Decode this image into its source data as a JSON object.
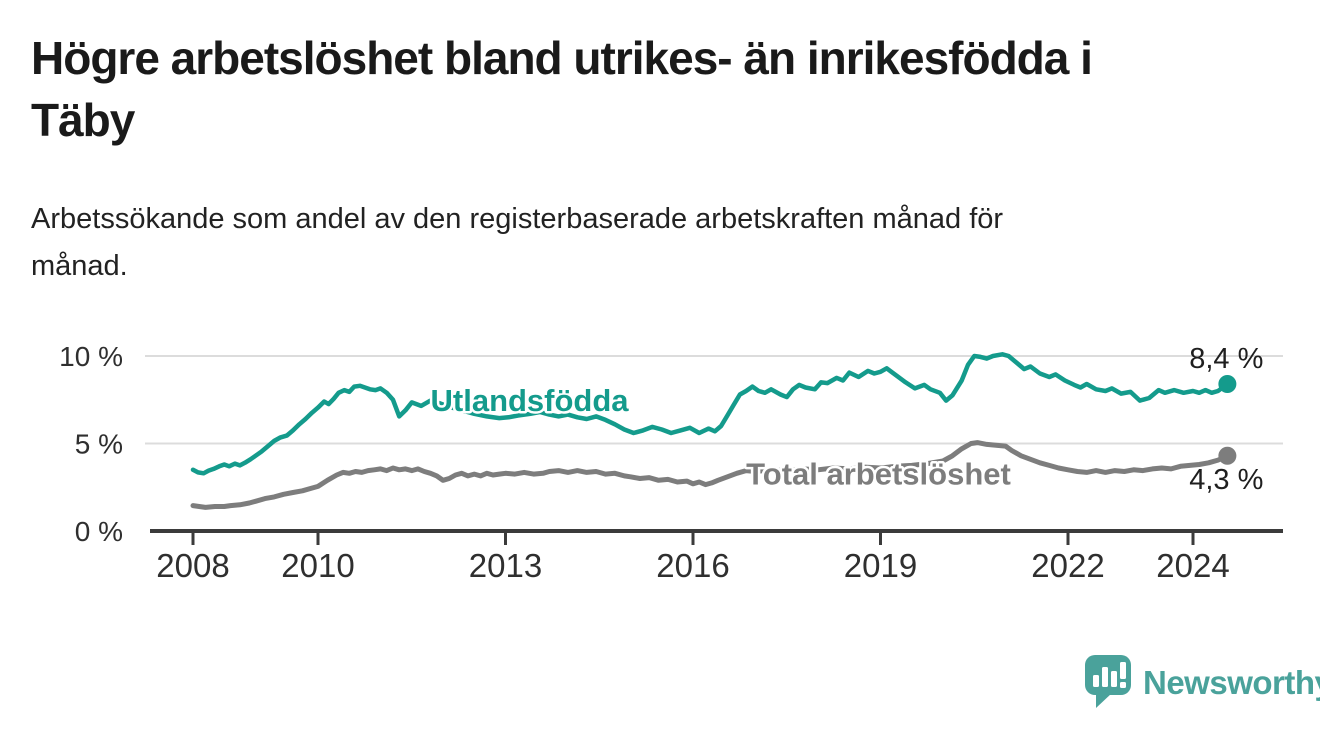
{
  "title": {
    "line1": "Högre arbetslöshet bland utrikes- än inrikesfödda i",
    "line2": "Täby"
  },
  "subtitle": {
    "line1": "Arbetssökande som andel av den registerbaserade arbetskraften månad för",
    "line2": "månad."
  },
  "branding": {
    "logo_text": "Newsworthy",
    "logo_icon": "newsworthy-speech-bubble-bar-chart-icon"
  },
  "colors": {
    "foreign_born_line": "#149b8c",
    "total_line": "#7d7d7d",
    "axis": "#3b3b3b",
    "grid": "#dcdcdc",
    "text": "#1f1f1f",
    "logo": "#4aa29b",
    "background": "#ffffff"
  },
  "chart_data": {
    "type": "line",
    "title": "Högre arbetslöshet bland utrikes- än inrikesfödda i Täby",
    "subtitle": "Arbetssökande som andel av den registerbaserade arbetskraften månad för månad.",
    "xlabel": "",
    "ylabel": "",
    "grid": "horizontal",
    "legend_position": "inline-labels",
    "xlim": [
      2007.3,
      2025.4
    ],
    "ylim": [
      0,
      10.8
    ],
    "x_ticks": [
      2008,
      2010,
      2013,
      2016,
      2019,
      2022,
      2024
    ],
    "y_ticks": [
      {
        "value": 0,
        "label": "0 %"
      },
      {
        "value": 5,
        "label": "5 %"
      },
      {
        "value": 10,
        "label": "10 %"
      }
    ],
    "series": [
      {
        "id": "utlandsfodda",
        "name": "Utlandsfödda",
        "color": "#149b8c",
        "width": 4.5,
        "end_label": "8,4 %",
        "end_value": 8.4,
        "value_label_position": "above",
        "label_anchor": {
          "x": 2011.8,
          "y": 7.5
        },
        "points": [
          [
            2008.0,
            3.5
          ],
          [
            2008.08,
            3.35
          ],
          [
            2008.17,
            3.3
          ],
          [
            2008.25,
            3.45
          ],
          [
            2008.33,
            3.55
          ],
          [
            2008.42,
            3.7
          ],
          [
            2008.5,
            3.8
          ],
          [
            2008.58,
            3.7
          ],
          [
            2008.67,
            3.85
          ],
          [
            2008.75,
            3.75
          ],
          [
            2008.83,
            3.9
          ],
          [
            2008.92,
            4.1
          ],
          [
            2009.0,
            4.3
          ],
          [
            2009.1,
            4.55
          ],
          [
            2009.2,
            4.85
          ],
          [
            2009.3,
            5.15
          ],
          [
            2009.4,
            5.35
          ],
          [
            2009.5,
            5.45
          ],
          [
            2009.6,
            5.75
          ],
          [
            2009.7,
            6.1
          ],
          [
            2009.8,
            6.4
          ],
          [
            2009.9,
            6.75
          ],
          [
            2010.0,
            7.05
          ],
          [
            2010.1,
            7.4
          ],
          [
            2010.17,
            7.25
          ],
          [
            2010.25,
            7.55
          ],
          [
            2010.33,
            7.9
          ],
          [
            2010.42,
            8.05
          ],
          [
            2010.5,
            7.95
          ],
          [
            2010.58,
            8.25
          ],
          [
            2010.67,
            8.3
          ],
          [
            2010.75,
            8.2
          ],
          [
            2010.83,
            8.1
          ],
          [
            2010.92,
            8.05
          ],
          [
            2011.0,
            8.15
          ],
          [
            2011.1,
            7.9
          ],
          [
            2011.2,
            7.5
          ],
          [
            2011.3,
            6.55
          ],
          [
            2011.4,
            6.9
          ],
          [
            2011.5,
            7.35
          ],
          [
            2011.65,
            7.15
          ],
          [
            2011.8,
            7.45
          ],
          [
            2011.95,
            7.3
          ],
          [
            2012.1,
            7.1
          ],
          [
            2012.3,
            6.9
          ],
          [
            2012.5,
            6.7
          ],
          [
            2012.7,
            6.55
          ],
          [
            2012.9,
            6.45
          ],
          [
            2013.05,
            6.5
          ],
          [
            2013.2,
            6.6
          ],
          [
            2013.4,
            6.7
          ],
          [
            2013.55,
            6.8
          ],
          [
            2013.7,
            6.65
          ],
          [
            2013.85,
            6.55
          ],
          [
            2014.0,
            6.65
          ],
          [
            2014.15,
            6.5
          ],
          [
            2014.3,
            6.4
          ],
          [
            2014.45,
            6.55
          ],
          [
            2014.6,
            6.35
          ],
          [
            2014.75,
            6.1
          ],
          [
            2014.9,
            5.8
          ],
          [
            2015.05,
            5.6
          ],
          [
            2015.2,
            5.75
          ],
          [
            2015.35,
            5.95
          ],
          [
            2015.5,
            5.8
          ],
          [
            2015.65,
            5.6
          ],
          [
            2015.8,
            5.75
          ],
          [
            2015.95,
            5.9
          ],
          [
            2016.1,
            5.6
          ],
          [
            2016.25,
            5.85
          ],
          [
            2016.35,
            5.7
          ],
          [
            2016.45,
            6.0
          ],
          [
            2016.55,
            6.6
          ],
          [
            2016.65,
            7.2
          ],
          [
            2016.75,
            7.8
          ],
          [
            2016.85,
            8.0
          ],
          [
            2016.95,
            8.25
          ],
          [
            2017.05,
            8.0
          ],
          [
            2017.15,
            7.9
          ],
          [
            2017.25,
            8.1
          ],
          [
            2017.4,
            7.8
          ],
          [
            2017.5,
            7.65
          ],
          [
            2017.6,
            8.1
          ],
          [
            2017.7,
            8.35
          ],
          [
            2017.8,
            8.2
          ],
          [
            2017.95,
            8.1
          ],
          [
            2018.05,
            8.5
          ],
          [
            2018.15,
            8.45
          ],
          [
            2018.3,
            8.75
          ],
          [
            2018.4,
            8.6
          ],
          [
            2018.5,
            9.05
          ],
          [
            2018.65,
            8.8
          ],
          [
            2018.8,
            9.15
          ],
          [
            2018.9,
            9.0
          ],
          [
            2019.0,
            9.1
          ],
          [
            2019.1,
            9.3
          ],
          [
            2019.25,
            8.9
          ],
          [
            2019.4,
            8.5
          ],
          [
            2019.55,
            8.15
          ],
          [
            2019.7,
            8.35
          ],
          [
            2019.8,
            8.1
          ],
          [
            2019.95,
            7.9
          ],
          [
            2020.05,
            7.45
          ],
          [
            2020.15,
            7.75
          ],
          [
            2020.3,
            8.6
          ],
          [
            2020.4,
            9.5
          ],
          [
            2020.5,
            10.0
          ],
          [
            2020.6,
            9.95
          ],
          [
            2020.7,
            9.85
          ],
          [
            2020.8,
            10.0
          ],
          [
            2020.95,
            10.1
          ],
          [
            2021.05,
            10.0
          ],
          [
            2021.2,
            9.55
          ],
          [
            2021.3,
            9.25
          ],
          [
            2021.4,
            9.4
          ],
          [
            2021.55,
            9.0
          ],
          [
            2021.7,
            8.8
          ],
          [
            2021.8,
            8.95
          ],
          [
            2021.95,
            8.6
          ],
          [
            2022.1,
            8.35
          ],
          [
            2022.2,
            8.2
          ],
          [
            2022.3,
            8.4
          ],
          [
            2022.45,
            8.1
          ],
          [
            2022.6,
            8.0
          ],
          [
            2022.7,
            8.15
          ],
          [
            2022.85,
            7.85
          ],
          [
            2023.0,
            7.95
          ],
          [
            2023.15,
            7.45
          ],
          [
            2023.3,
            7.6
          ],
          [
            2023.45,
            8.05
          ],
          [
            2023.55,
            7.9
          ],
          [
            2023.7,
            8.05
          ],
          [
            2023.85,
            7.9
          ],
          [
            2024.0,
            8.0
          ],
          [
            2024.1,
            7.9
          ],
          [
            2024.2,
            8.05
          ],
          [
            2024.3,
            7.9
          ],
          [
            2024.4,
            8.0
          ],
          [
            2024.55,
            8.4
          ]
        ]
      },
      {
        "id": "total",
        "name": "Total arbetslöshet",
        "color": "#7d7d7d",
        "width": 5,
        "end_label": "4,3 %",
        "end_value": 4.3,
        "value_label_position": "below",
        "label_anchor": {
          "x": 2016.85,
          "y": 3.3
        },
        "points": [
          [
            2008.0,
            1.45
          ],
          [
            2008.1,
            1.4
          ],
          [
            2008.2,
            1.35
          ],
          [
            2008.35,
            1.4
          ],
          [
            2008.5,
            1.4
          ],
          [
            2008.6,
            1.45
          ],
          [
            2008.75,
            1.5
          ],
          [
            2008.9,
            1.6
          ],
          [
            2009.0,
            1.7
          ],
          [
            2009.15,
            1.85
          ],
          [
            2009.3,
            1.95
          ],
          [
            2009.45,
            2.1
          ],
          [
            2009.6,
            2.2
          ],
          [
            2009.75,
            2.3
          ],
          [
            2009.9,
            2.45
          ],
          [
            2010.0,
            2.55
          ],
          [
            2010.15,
            2.9
          ],
          [
            2010.3,
            3.2
          ],
          [
            2010.4,
            3.35
          ],
          [
            2010.5,
            3.3
          ],
          [
            2010.6,
            3.4
          ],
          [
            2010.7,
            3.35
          ],
          [
            2010.8,
            3.45
          ],
          [
            2010.9,
            3.5
          ],
          [
            2011.0,
            3.55
          ],
          [
            2011.1,
            3.45
          ],
          [
            2011.2,
            3.6
          ],
          [
            2011.3,
            3.5
          ],
          [
            2011.4,
            3.55
          ],
          [
            2011.5,
            3.45
          ],
          [
            2011.6,
            3.55
          ],
          [
            2011.7,
            3.4
          ],
          [
            2011.8,
            3.3
          ],
          [
            2011.9,
            3.15
          ],
          [
            2012.0,
            2.9
          ],
          [
            2012.1,
            3.0
          ],
          [
            2012.2,
            3.2
          ],
          [
            2012.3,
            3.3
          ],
          [
            2012.4,
            3.15
          ],
          [
            2012.5,
            3.25
          ],
          [
            2012.6,
            3.15
          ],
          [
            2012.7,
            3.3
          ],
          [
            2012.8,
            3.2
          ],
          [
            2012.9,
            3.25
          ],
          [
            2013.0,
            3.3
          ],
          [
            2013.15,
            3.25
          ],
          [
            2013.3,
            3.35
          ],
          [
            2013.45,
            3.25
          ],
          [
            2013.6,
            3.3
          ],
          [
            2013.7,
            3.4
          ],
          [
            2013.85,
            3.45
          ],
          [
            2014.0,
            3.35
          ],
          [
            2014.15,
            3.45
          ],
          [
            2014.3,
            3.35
          ],
          [
            2014.45,
            3.4
          ],
          [
            2014.6,
            3.25
          ],
          [
            2014.75,
            3.3
          ],
          [
            2014.9,
            3.15
          ],
          [
            2015.0,
            3.1
          ],
          [
            2015.15,
            3.0
          ],
          [
            2015.3,
            3.05
          ],
          [
            2015.45,
            2.9
          ],
          [
            2015.6,
            2.95
          ],
          [
            2015.75,
            2.8
          ],
          [
            2015.9,
            2.85
          ],
          [
            2016.0,
            2.7
          ],
          [
            2016.1,
            2.8
          ],
          [
            2016.2,
            2.65
          ],
          [
            2016.3,
            2.75
          ],
          [
            2016.4,
            2.9
          ],
          [
            2016.55,
            3.1
          ],
          [
            2016.7,
            3.3
          ],
          [
            2016.85,
            3.45
          ],
          [
            2017.0,
            3.4
          ],
          [
            2017.25,
            3.5
          ],
          [
            2017.5,
            3.45
          ],
          [
            2017.75,
            3.55
          ],
          [
            2018.0,
            3.5
          ],
          [
            2018.25,
            3.6
          ],
          [
            2018.5,
            3.55
          ],
          [
            2018.75,
            3.65
          ],
          [
            2019.0,
            3.6
          ],
          [
            2019.25,
            3.7
          ],
          [
            2019.5,
            3.75
          ],
          [
            2019.75,
            3.85
          ],
          [
            2020.0,
            4.0
          ],
          [
            2020.15,
            4.3
          ],
          [
            2020.3,
            4.7
          ],
          [
            2020.45,
            5.0
          ],
          [
            2020.55,
            5.05
          ],
          [
            2020.7,
            4.95
          ],
          [
            2020.85,
            4.9
          ],
          [
            2021.0,
            4.85
          ],
          [
            2021.1,
            4.6
          ],
          [
            2021.25,
            4.3
          ],
          [
            2021.4,
            4.1
          ],
          [
            2021.55,
            3.9
          ],
          [
            2021.7,
            3.75
          ],
          [
            2021.85,
            3.6
          ],
          [
            2022.0,
            3.5
          ],
          [
            2022.15,
            3.4
          ],
          [
            2022.3,
            3.35
          ],
          [
            2022.45,
            3.45
          ],
          [
            2022.6,
            3.35
          ],
          [
            2022.75,
            3.45
          ],
          [
            2022.9,
            3.4
          ],
          [
            2023.05,
            3.5
          ],
          [
            2023.2,
            3.45
          ],
          [
            2023.35,
            3.55
          ],
          [
            2023.5,
            3.6
          ],
          [
            2023.65,
            3.55
          ],
          [
            2023.8,
            3.7
          ],
          [
            2023.95,
            3.75
          ],
          [
            2024.1,
            3.8
          ],
          [
            2024.25,
            3.9
          ],
          [
            2024.4,
            4.05
          ],
          [
            2024.55,
            4.3
          ]
        ]
      }
    ]
  }
}
